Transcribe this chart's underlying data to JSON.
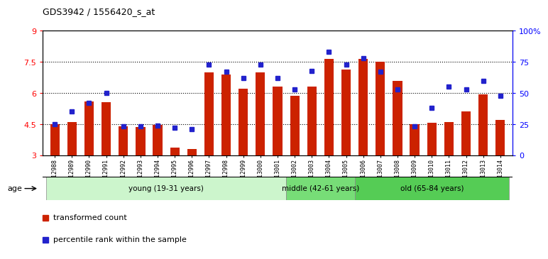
{
  "title": "GDS3942 / 1556420_s_at",
  "samples": [
    "GSM812988",
    "GSM812989",
    "GSM812990",
    "GSM812991",
    "GSM812992",
    "GSM812993",
    "GSM812994",
    "GSM812995",
    "GSM812996",
    "GSM812997",
    "GSM812998",
    "GSM812999",
    "GSM813000",
    "GSM813001",
    "GSM813002",
    "GSM813003",
    "GSM813004",
    "GSM813005",
    "GSM813006",
    "GSM813007",
    "GSM813008",
    "GSM813009",
    "GSM813010",
    "GSM813011",
    "GSM813012",
    "GSM813013",
    "GSM813014"
  ],
  "bar_values": [
    4.5,
    4.6,
    5.6,
    5.55,
    4.38,
    4.35,
    4.45,
    3.35,
    3.3,
    7.0,
    6.9,
    6.2,
    7.0,
    6.3,
    5.85,
    6.3,
    7.65,
    7.15,
    7.65,
    7.5,
    6.6,
    4.5,
    4.55,
    4.6,
    5.1,
    5.95,
    4.7
  ],
  "percentile_values": [
    25,
    35,
    42,
    50,
    23,
    23,
    24,
    22,
    21,
    73,
    67,
    62,
    73,
    62,
    53,
    68,
    83,
    73,
    78,
    67,
    53,
    23,
    38,
    55,
    53,
    60,
    48
  ],
  "bar_color": "#cc2200",
  "percentile_color": "#2222cc",
  "ylim_left": [
    3,
    9
  ],
  "ylim_right": [
    0,
    100
  ],
  "yticks_left": [
    3,
    4.5,
    6,
    7.5,
    9
  ],
  "ytick_labels_left": [
    "3",
    "4.5",
    "6",
    "7.5",
    "9"
  ],
  "yticks_right": [
    0,
    25,
    50,
    75,
    100
  ],
  "ytick_labels_right": [
    "0",
    "25",
    "50",
    "75",
    "100%"
  ],
  "groups": [
    {
      "label": "young (19-31 years)",
      "start": 0,
      "end": 14,
      "color": "#ccf5cc"
    },
    {
      "label": "middle (42-61 years)",
      "start": 14,
      "end": 18,
      "color": "#77dd77"
    },
    {
      "label": "old (65-84 years)",
      "start": 18,
      "end": 27,
      "color": "#55cc55"
    }
  ],
  "age_label": "age",
  "legend_items": [
    {
      "label": "transformed count",
      "color": "#cc2200"
    },
    {
      "label": "percentile rank within the sample",
      "color": "#2222cc"
    }
  ],
  "hlines": [
    4.5,
    6.0,
    7.5
  ],
  "baseline": 3
}
